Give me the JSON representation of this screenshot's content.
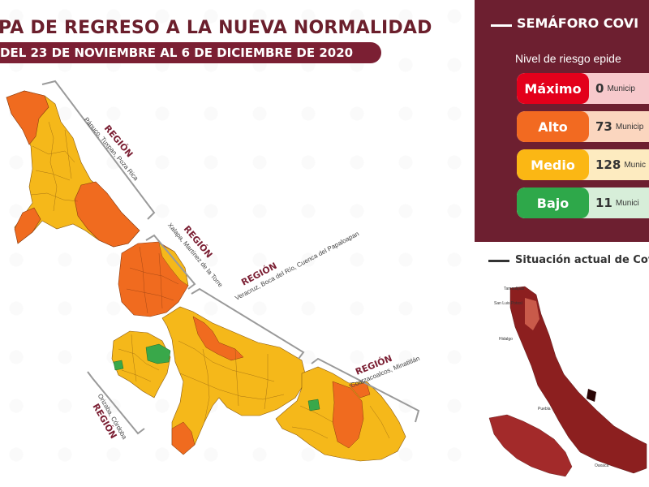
{
  "header": {
    "title": "PA DE REGRESO A LA NUEVA NORMALIDAD",
    "date_range": "DEL 23 DE NOVIEMBRE AL 6 DE DICIEMBRE DE 2020"
  },
  "regions": [
    {
      "label": "REGIÓN",
      "sub": "Pánuco, Tuxpan, Poza Rica"
    },
    {
      "label": "REGIÓN",
      "sub": "Xalapa, Martínez de la Torre"
    },
    {
      "label": "REGIÓN",
      "sub": "Veracruz, Boca del Río, Cuenca del Papaloapan"
    },
    {
      "label": "REGIÓN",
      "sub": "Coatzacoalcos, Minatitlán"
    },
    {
      "label": "REGIÓN",
      "sub": "Orizaba, Córdoba"
    }
  ],
  "semaforo": {
    "title": "SEMÁFORO COVI",
    "subtitle": "Nivel de riesgo epide",
    "levels": [
      {
        "name": "Máximo",
        "count": "0",
        "unit": "Municip",
        "color": "#e3001b",
        "bg": "#f7c9cc"
      },
      {
        "name": "Alto",
        "count": "73",
        "unit": "Municip",
        "color": "#f26a21",
        "bg": "#fbd6bf"
      },
      {
        "name": "Medio",
        "count": "128",
        "unit": "Munic",
        "color": "#fbb714",
        "bg": "#fdebc0"
      },
      {
        "name": "Bajo",
        "count": "11",
        "unit": "Munici",
        "color": "#2ea84a",
        "bg": "#d7eed9"
      }
    ]
  },
  "situacion": {
    "title": "Situación actual de Cov",
    "labels": [
      "Tamaulipas",
      "San Luis Potosí",
      "Hidalgo",
      "Puebla",
      "Oaxaca"
    ]
  },
  "colors": {
    "orange": "#f06b1f",
    "yellow": "#f5b81a",
    "green": "#39a84a",
    "maroon": "#7b1f33"
  }
}
